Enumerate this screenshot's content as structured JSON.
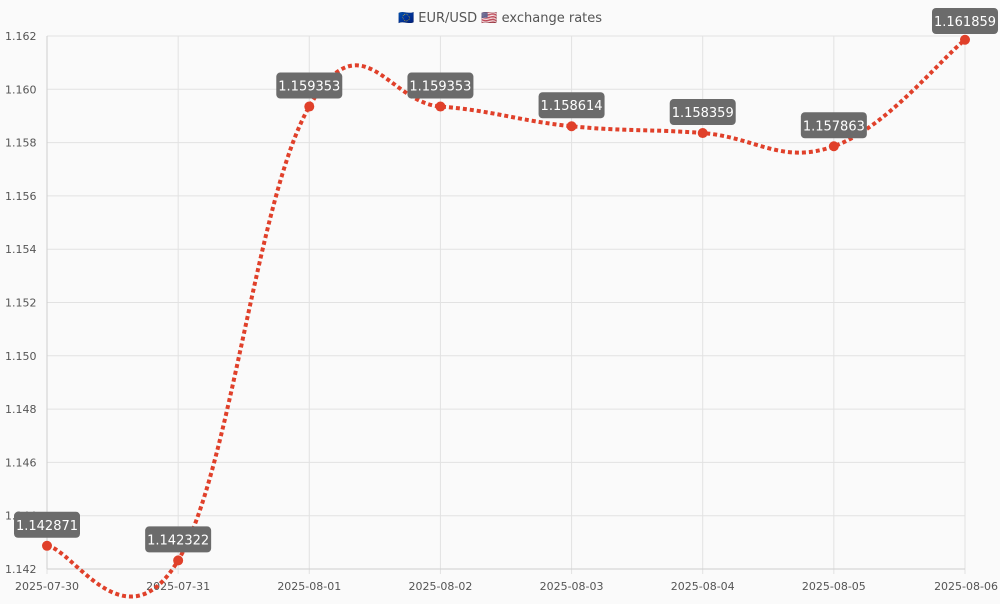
{
  "chart_data": {
    "type": "line",
    "title": "🇪🇺 EUR/USD 🇺🇸 exchange rates",
    "xlabel": "",
    "ylabel": "",
    "x": [
      "2025-07-30",
      "2025-07-31",
      "2025-08-01",
      "2025-08-02",
      "2025-08-03",
      "2025-08-04",
      "2025-08-05",
      "2025-08-06"
    ],
    "series": [
      {
        "values": [
          1.142871,
          1.142322,
          1.159353,
          1.159353,
          1.158614,
          1.158359,
          1.157863,
          1.161859
        ],
        "data_labels": [
          "1.142871",
          "1.142322",
          "1.159353",
          "1.159353",
          "1.158614",
          "1.158359",
          "1.157863",
          "1.161859"
        ]
      }
    ],
    "ylim": [
      1.142,
      1.162
    ],
    "y_ticks": [
      "1.142",
      "1.144",
      "1.146",
      "1.148",
      "1.150",
      "1.152",
      "1.154",
      "1.156",
      "1.158",
      "1.160",
      "1.162"
    ],
    "grid": true,
    "line_style": "dotted",
    "smooth": true,
    "colors": {
      "line": "#e0402a",
      "point": "#e0402a",
      "label_bg": "#6b6b6b",
      "label_text": "#ffffff",
      "grid": "#e2e2e2",
      "axis_text": "#555555",
      "title_text": "#555555"
    }
  }
}
